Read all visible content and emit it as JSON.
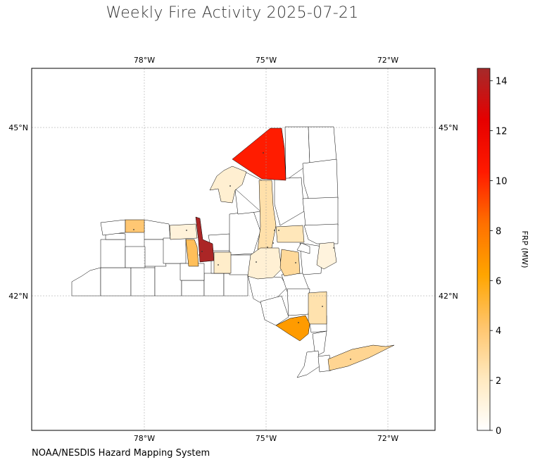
{
  "title": "Weekly Fire Activity 2025-07-21",
  "source": "NOAA/NESDIS Hazard Mapping System",
  "map": {
    "lon_ticks": [
      "78°W",
      "75°W",
      "72°W"
    ],
    "lat_ticks": [
      "45°N",
      "42°N"
    ],
    "gridlines": true
  },
  "colorbar": {
    "label": "FRP (MW)",
    "min": 0,
    "max": 14.5,
    "ticks": [
      "0",
      "2",
      "4",
      "6",
      "8",
      "10",
      "12",
      "14"
    ],
    "colors": [
      "#ffffff",
      "#ffe9bf",
      "#ffc56d",
      "#ffa500",
      "#ff7000",
      "#ff1a00",
      "#e60000",
      "#a52a2a"
    ]
  },
  "chart_data": {
    "type": "choropleth",
    "title": "Weekly Fire Activity 2025-07-21",
    "value_label": "FRP (MW)",
    "range": [
      0,
      14.5
    ],
    "lon_range": [
      "-80.8",
      "-70.8"
    ],
    "lat_range": [
      "40.2",
      "47.0"
    ],
    "counties": [
      {
        "id": "st-lawrence",
        "value": 10.3
      },
      {
        "id": "jefferson",
        "value": 1.5
      },
      {
        "id": "orleans",
        "value": 4.0
      },
      {
        "id": "monroe-west",
        "value": 1.2
      },
      {
        "id": "ontario",
        "value": 4.5
      },
      {
        "id": "yates-seneca",
        "value": 14.3
      },
      {
        "id": "tompkins",
        "value": 1.7
      },
      {
        "id": "lewis-herkimer",
        "value": 2.6
      },
      {
        "id": "montgomery",
        "value": 2.2
      },
      {
        "id": "otsego-chenango",
        "value": 1.4
      },
      {
        "id": "schoharie",
        "value": 3.0
      },
      {
        "id": "rensselaer",
        "value": 1.1
      },
      {
        "id": "dutchess",
        "value": 2.5
      },
      {
        "id": "orange",
        "value": 6.6
      },
      {
        "id": "suffolk",
        "value": 3.2
      }
    ]
  }
}
